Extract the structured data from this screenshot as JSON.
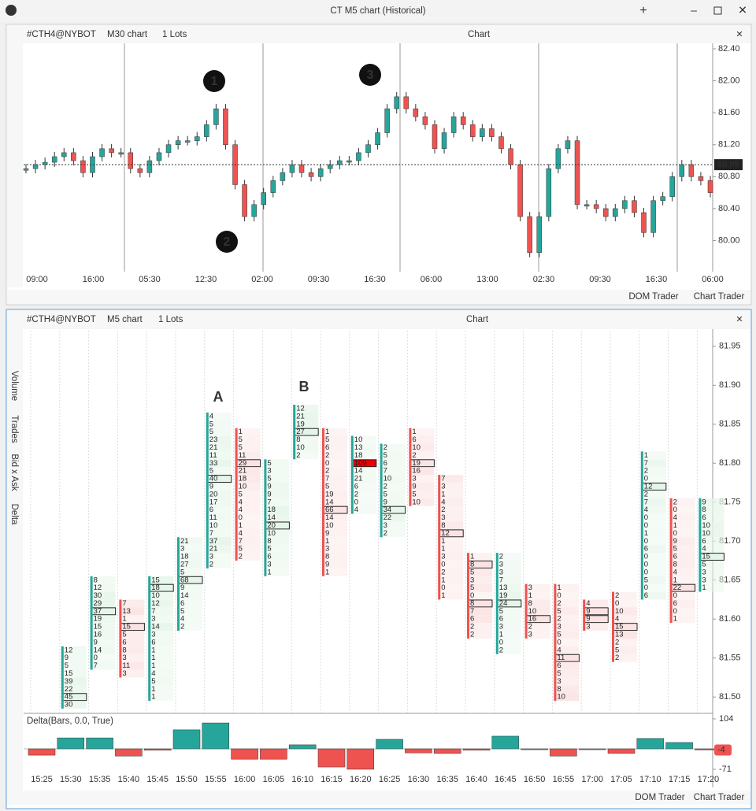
{
  "window_title": "CT M5 chart (Historical)",
  "top_toolbar": {
    "symbol": "#CTH4@NYBOT",
    "timeframe": "M30 chart",
    "lots": "1 Lots",
    "name": "Chart"
  },
  "bottom_toolbar": {
    "symbol": "#CTH4@NYBOT",
    "timeframe": "M5 chart",
    "lots": "1 Lots",
    "name": "Chart"
  },
  "side_tabs": [
    "Volume",
    "Trades",
    "Bid x Ask",
    "Delta"
  ],
  "footer_buttons": [
    "DOM Trader",
    "Chart Trader"
  ],
  "chart_data": [
    {
      "type": "candlestick",
      "categories": [
        "09:00",
        "16:00",
        "05:30",
        "12:30",
        "02:00",
        "09:30",
        "16:30",
        "06:00",
        "13:00",
        "02:30",
        "09:30",
        "16:30",
        "06:00"
      ],
      "close": [
        80.9,
        80.95,
        80.98,
        81.05,
        81.1,
        81.0,
        80.85,
        81.05,
        81.15,
        81.1,
        81.1,
        80.9,
        80.85,
        81.0,
        81.1,
        81.2,
        81.25,
        81.25,
        81.3,
        81.45,
        81.65,
        81.2,
        80.7,
        80.3,
        80.45,
        80.6,
        80.75,
        80.85,
        80.95,
        80.85,
        80.8,
        80.9,
        80.95,
        81.0,
        81.0,
        81.1,
        81.2,
        81.35,
        81.65,
        81.8,
        81.65,
        81.55,
        81.45,
        81.15,
        81.35,
        81.55,
        81.45,
        81.3,
        81.4,
        81.3,
        81.15,
        80.95,
        80.3,
        79.85,
        80.3,
        80.9,
        81.15,
        81.25,
        80.45,
        80.45,
        80.4,
        80.3,
        80.4,
        80.5,
        80.35,
        80.1,
        80.5,
        80.55,
        80.8,
        80.95,
        80.8,
        80.75,
        80.6
      ],
      "up_color": "#26a69a",
      "down_color": "#ef5350",
      "ylim": [
        79.66,
        82.4
      ],
      "yticks": [
        {
          "value": 82.4,
          "label": "82.40"
        },
        {
          "value": 82.0,
          "label": "82.00"
        },
        {
          "value": 81.6,
          "label": "81.60"
        },
        {
          "value": 81.2,
          "label": "81.20"
        },
        {
          "value": 80.8,
          "label": "80.80"
        },
        {
          "value": 80.4,
          "label": "80.40"
        },
        {
          "value": 80.0,
          "label": "80.00"
        }
      ],
      "last_price": {
        "value": 80.95,
        "label": "80.95"
      },
      "annotations": [
        "1",
        "2",
        "3"
      ]
    },
    {
      "type": "footprint",
      "categories": [
        "15:25",
        "15:30",
        "15:35",
        "15:40",
        "15:45",
        "15:50",
        "15:55",
        "16:00",
        "16:05",
        "16:10",
        "16:15",
        "16:20",
        "16:25",
        "16:30",
        "16:35",
        "16:40",
        "16:45",
        "16:50",
        "16:55",
        "17:00",
        "17:05",
        "17:10",
        "17:15",
        "17:20"
      ],
      "clusters": [
        null,
        {
          "top": 81.56,
          "color": "#26a69a",
          "values": [
            12,
            9,
            5,
            15,
            39,
            22,
            45,
            30
          ]
        },
        {
          "top": 81.65,
          "color": "#26a69a",
          "values": [
            8,
            12,
            30,
            29,
            37,
            19,
            15,
            16,
            9,
            14,
            0,
            7
          ]
        },
        {
          "top": 81.62,
          "color": "#ef5350",
          "values": [
            7,
            13,
            1,
            15,
            5,
            6,
            8,
            3,
            11,
            3
          ]
        },
        {
          "top": 81.65,
          "color": "#26a69a",
          "values": [
            15,
            18,
            10,
            12,
            7,
            3,
            14,
            3,
            6,
            1,
            1,
            1,
            4,
            5,
            1,
            1
          ]
        },
        {
          "top": 81.7,
          "color": "#26a69a",
          "values": [
            21,
            3,
            18,
            27,
            5,
            68,
            9,
            14,
            6,
            5,
            4,
            2
          ]
        },
        {
          "top": 81.86,
          "color": "#26a69a",
          "values": [
            4,
            5,
            5,
            23,
            21,
            11,
            33,
            5,
            40,
            9,
            20,
            17,
            6,
            11,
            10,
            7,
            37,
            21,
            3,
            2
          ]
        },
        {
          "top": 81.84,
          "color": "#ef5350",
          "values": [
            1,
            5,
            5,
            11,
            29,
            21,
            18,
            10,
            5,
            4,
            4,
            0,
            1,
            4,
            7,
            5,
            2
          ]
        },
        {
          "top": 81.8,
          "color": "#26a69a",
          "values": [
            5,
            3,
            5,
            9,
            9,
            7,
            18,
            14,
            20,
            10,
            8,
            5,
            6,
            3,
            1
          ]
        },
        {
          "top": 81.87,
          "color": "#26a69a",
          "values": [
            12,
            21,
            19,
            27,
            8,
            10,
            2
          ]
        },
        {
          "top": 81.84,
          "color": "#ef5350",
          "values": [
            1,
            5,
            6,
            2,
            0,
            2,
            7,
            5,
            19,
            14,
            66,
            14,
            10,
            9,
            1,
            3,
            8,
            9,
            1
          ]
        },
        {
          "top": 81.83,
          "color": "#26a69a",
          "values": [
            10,
            13,
            18,
            109,
            14,
            21,
            6,
            2,
            0,
            4
          ]
        },
        {
          "top": 81.82,
          "color": "#26a69a",
          "values": [
            2,
            5,
            6,
            7,
            10,
            2,
            5,
            9,
            34,
            22,
            3,
            2
          ]
        },
        {
          "top": 81.84,
          "color": "#ef5350",
          "values": [
            1,
            6,
            10,
            2,
            19,
            16,
            3,
            9,
            5,
            10
          ]
        },
        {
          "top": 81.78,
          "color": "#ef5350",
          "values": [
            7,
            3,
            1,
            4,
            2,
            3,
            8,
            12,
            1,
            1,
            3,
            0,
            2,
            1,
            0,
            1
          ]
        },
        {
          "top": 81.68,
          "color": "#ef5350",
          "values": [
            1,
            8,
            5,
            3,
            5,
            0,
            8,
            7,
            6,
            2,
            2
          ]
        },
        {
          "top": 81.68,
          "color": "#26a69a",
          "values": [
            2,
            3,
            3,
            7,
            13,
            19,
            24,
            5,
            6,
            3,
            1,
            0,
            2
          ]
        },
        {
          "top": 81.64,
          "color": "#ef5350",
          "values": [
            3,
            1,
            8,
            10,
            16,
            2,
            3
          ]
        },
        {
          "top": 81.64,
          "color": "#ef5350",
          "values": [
            1,
            0,
            2,
            5,
            2,
            3,
            5,
            0,
            4,
            11,
            6,
            5,
            3,
            8,
            10
          ]
        },
        {
          "top": 81.62,
          "color": "#ef5350",
          "values": [
            4,
            9,
            9,
            3
          ]
        },
        {
          "top": 81.63,
          "color": "#ef5350",
          "values": [
            2,
            0,
            10,
            4,
            15,
            13,
            2,
            5,
            2
          ]
        },
        {
          "top": 81.81,
          "color": "#26a69a",
          "values": [
            1,
            7,
            2,
            0,
            12,
            2,
            7,
            4,
            0,
            0,
            1,
            0,
            6,
            0,
            0,
            0,
            5,
            0,
            6
          ]
        },
        {
          "top": 81.75,
          "color": "#ef5350",
          "values": [
            2,
            0,
            4,
            1,
            0,
            9,
            5,
            6,
            8,
            4,
            1,
            22,
            0,
            6,
            0,
            1
          ]
        },
        {
          "top": 81.75,
          "color": "#26a69a",
          "values": [
            9,
            8,
            6,
            10,
            10,
            6,
            4,
            15,
            5,
            3,
            3,
            1
          ]
        }
      ],
      "ylim": [
        81.48,
        81.97
      ],
      "yticks": [
        {
          "value": 81.95,
          "label": "81.95"
        },
        {
          "value": 81.9,
          "label": "81.90"
        },
        {
          "value": 81.85,
          "label": "81.85"
        },
        {
          "value": 81.8,
          "label": "81.80"
        },
        {
          "value": 81.75,
          "label": "81.75"
        },
        {
          "value": 81.7,
          "label": "81.70"
        },
        {
          "value": 81.65,
          "label": "81.65"
        },
        {
          "value": 81.6,
          "label": "81.60"
        },
        {
          "value": 81.55,
          "label": "81.55"
        },
        {
          "value": 81.5,
          "label": "81.50"
        }
      ],
      "annotations": [
        "A",
        "B"
      ]
    },
    {
      "type": "bar",
      "title": "Delta(Bars, 0.0, True)",
      "values": [
        -22,
        38,
        38,
        -25,
        -5,
        66,
        90,
        -36,
        -36,
        14,
        -63,
        -71,
        33,
        -14,
        -16,
        -5,
        44,
        -3,
        -25,
        -3,
        -16,
        36,
        22,
        -4
      ],
      "up_color": "#26a69a",
      "down_color": "#ef5350",
      "ylim": [
        -71,
        104
      ],
      "yticks": [
        104,
        -71
      ]
    }
  ]
}
